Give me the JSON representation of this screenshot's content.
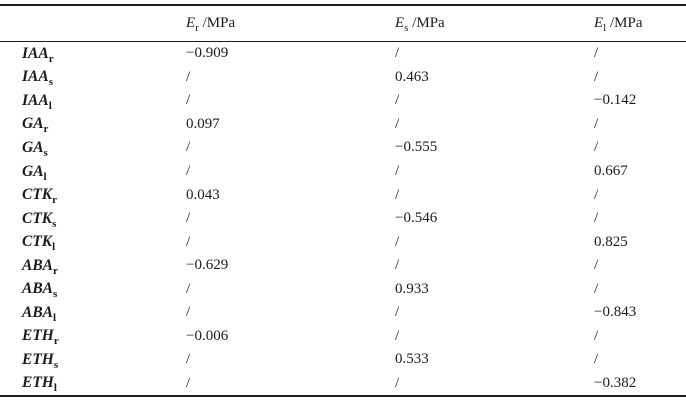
{
  "table": {
    "columns": [
      {
        "symbol": "E",
        "sub": "r",
        "unit": " /MPa"
      },
      {
        "symbol": "E",
        "sub": "s",
        "unit": " /MPa"
      },
      {
        "symbol": "E",
        "sub": "l",
        "unit": " /MPa"
      }
    ],
    "rows": [
      {
        "label": "IAA",
        "sub": "r",
        "values": [
          "−0.909",
          "/",
          "/"
        ]
      },
      {
        "label": "IAA",
        "sub": "s",
        "values": [
          "/",
          "0.463",
          "/"
        ]
      },
      {
        "label": "IAA",
        "sub": "l",
        "values": [
          "/",
          "/",
          "−0.142"
        ]
      },
      {
        "label": "GA",
        "sub": "r",
        "values": [
          "0.097",
          "/",
          "/"
        ]
      },
      {
        "label": "GA",
        "sub": "s",
        "values": [
          "/",
          "−0.555",
          "/"
        ]
      },
      {
        "label": "GA",
        "sub": "l",
        "values": [
          "/",
          "/",
          "0.667"
        ]
      },
      {
        "label": "CTK",
        "sub": "r",
        "values": [
          "0.043",
          "/",
          "/"
        ]
      },
      {
        "label": "CTK",
        "sub": "s",
        "values": [
          "/",
          "−0.546",
          "/"
        ]
      },
      {
        "label": "CTK",
        "sub": "l",
        "values": [
          "/",
          "/",
          "0.825"
        ]
      },
      {
        "label": "ABA",
        "sub": "r",
        "values": [
          "−0.629",
          "/",
          "/"
        ]
      },
      {
        "label": "ABA",
        "sub": "s",
        "values": [
          "/",
          "0.933",
          "/"
        ]
      },
      {
        "label": "ABA",
        "sub": "l",
        "values": [
          "/",
          "/",
          "−0.843"
        ]
      },
      {
        "label": "ETH",
        "sub": "r",
        "values": [
          "−0.006",
          "/",
          "/"
        ]
      },
      {
        "label": "ETH",
        "sub": "s",
        "values": [
          "/",
          "0.533",
          "/"
        ]
      },
      {
        "label": "ETH",
        "sub": "l",
        "values": [
          "/",
          "/",
          "−0.382"
        ]
      }
    ]
  },
  "chart_data": {
    "type": "table",
    "columns": [
      "",
      "Er /MPa",
      "Es /MPa",
      "El /MPa"
    ],
    "rows": [
      [
        "IAAr",
        "−0.909",
        "/",
        "/"
      ],
      [
        "IAAs",
        "/",
        "0.463",
        "/"
      ],
      [
        "IAAl",
        "/",
        "/",
        "−0.142"
      ],
      [
        "GAr",
        "0.097",
        "/",
        "/"
      ],
      [
        "GAs",
        "/",
        "−0.555",
        "/"
      ],
      [
        "GAl",
        "/",
        "/",
        "0.667"
      ],
      [
        "CTKr",
        "0.043",
        "/",
        "/"
      ],
      [
        "CTKs",
        "/",
        "−0.546",
        "/"
      ],
      [
        "CTKl",
        "/",
        "/",
        "0.825"
      ],
      [
        "ABAr",
        "−0.629",
        "/",
        "/"
      ],
      [
        "ABAs",
        "/",
        "0.933",
        "/"
      ],
      [
        "ABAl",
        "/",
        "/",
        "−0.843"
      ],
      [
        "ETHr",
        "−0.006",
        "/",
        "/"
      ],
      [
        "ETHs",
        "/",
        "0.533",
        "/"
      ],
      [
        "ETHl",
        "/",
        "/",
        "−0.382"
      ]
    ]
  },
  "colors": {
    "text": "#1b1b1b",
    "rule": "#1b1b1b",
    "background": "#ffffff"
  }
}
